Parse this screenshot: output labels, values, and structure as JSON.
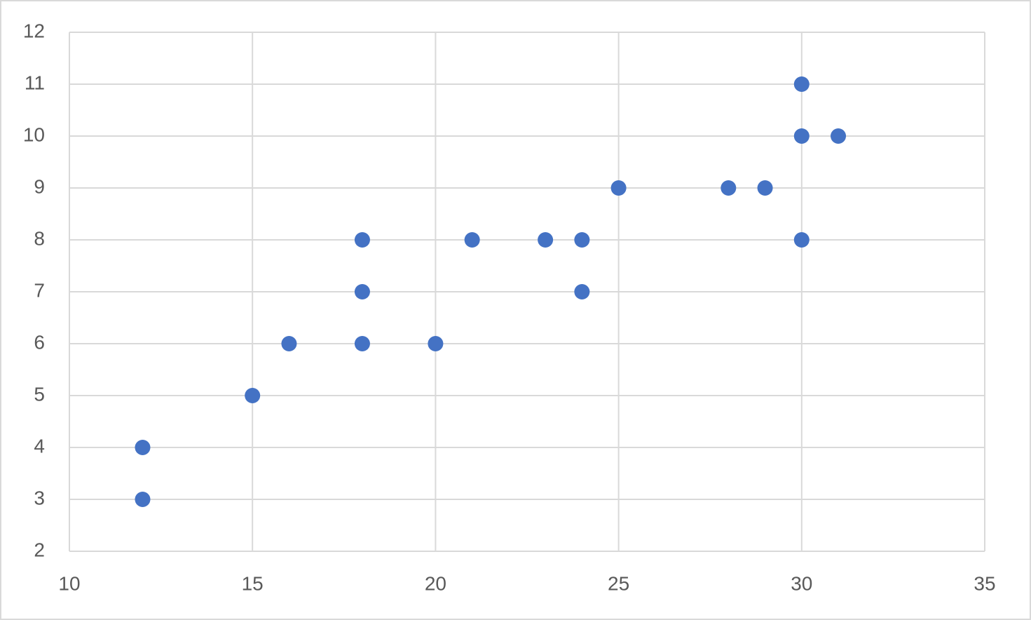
{
  "chart_data": {
    "type": "scatter",
    "x": [
      12,
      12,
      15,
      16,
      18,
      18,
      18,
      20,
      21,
      23,
      24,
      24,
      25,
      28,
      29,
      30,
      30,
      31,
      30
    ],
    "values": [
      4,
      3,
      5,
      6,
      8,
      7,
      6,
      6,
      8,
      8,
      8,
      7,
      9,
      9,
      9,
      11,
      10,
      10,
      8
    ],
    "color": "#4472c4",
    "xlim": [
      10,
      35
    ],
    "xticks": [
      10,
      15,
      20,
      25,
      30,
      35
    ],
    "ylim": [
      2,
      12
    ],
    "yticks": [
      2,
      3,
      4,
      5,
      6,
      7,
      8,
      9,
      10,
      11,
      12
    ],
    "grid": true
  }
}
